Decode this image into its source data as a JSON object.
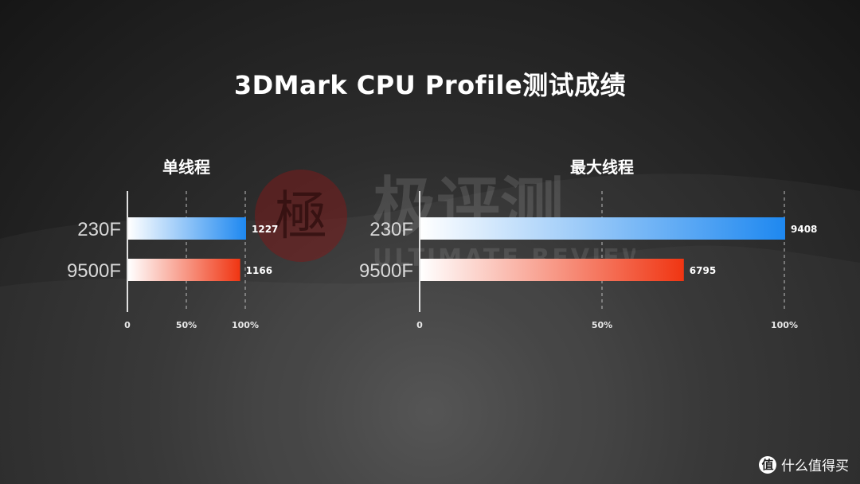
{
  "title": "3DMark CPU Profile测试成绩",
  "watermark": {
    "main": "极评测",
    "sub": "ULTIMATE REVIEW",
    "seal": "極"
  },
  "brand": {
    "logo_text": "值",
    "name": "什么值得买"
  },
  "colors": {
    "blue": "#1e88f0",
    "red": "#f03512",
    "axis": "#e0e0e0"
  },
  "chart_data": [
    {
      "type": "bar",
      "orientation": "horizontal",
      "title": "单线程",
      "categories": [
        "230F",
        "9500F"
      ],
      "values": [
        1227,
        1166
      ],
      "scale_max": 1227,
      "xlim": [
        0,
        1227
      ],
      "tick_labels": [
        "0",
        "50%",
        "100%"
      ],
      "grid": "dashed vertical at 50% and 100%"
    },
    {
      "type": "bar",
      "orientation": "horizontal",
      "title": "最大线程",
      "categories": [
        "230F",
        "9500F"
      ],
      "values": [
        9408,
        6795
      ],
      "scale_max": 9408,
      "xlim": [
        0,
        9408
      ],
      "tick_labels": [
        "0",
        "50%",
        "100%"
      ],
      "grid": "dashed vertical at 50% and 100%"
    }
  ]
}
